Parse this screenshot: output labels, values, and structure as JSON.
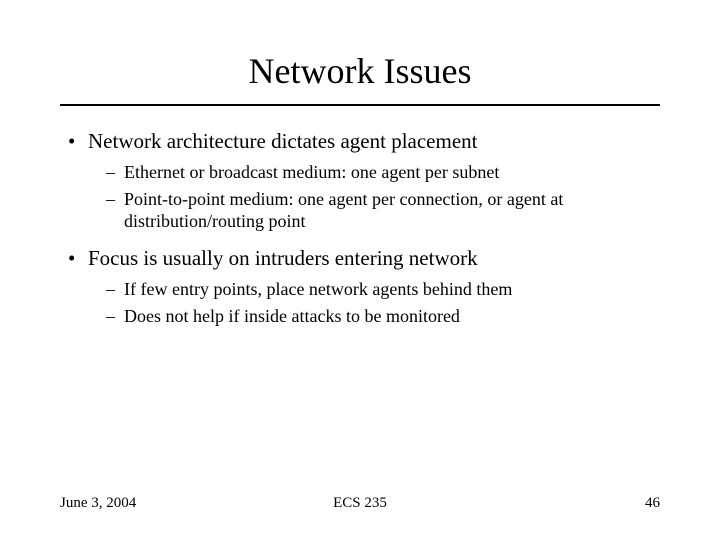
{
  "title": "Network Issues",
  "bullets": {
    "b1": "Network architecture dictates agent placement",
    "b1_1": "Ethernet or broadcast medium: one agent per subnet",
    "b1_2": "Point-to-point medium: one agent per connection, or agent at distribution/routing point",
    "b2": "Focus is usually on intruders entering network",
    "b2_1": "If few entry points, place network agents behind them",
    "b2_2": "Does not help if inside attacks to be monitored"
  },
  "footer": {
    "date": "June 3, 2004",
    "course": "ECS 235",
    "page": "46"
  }
}
